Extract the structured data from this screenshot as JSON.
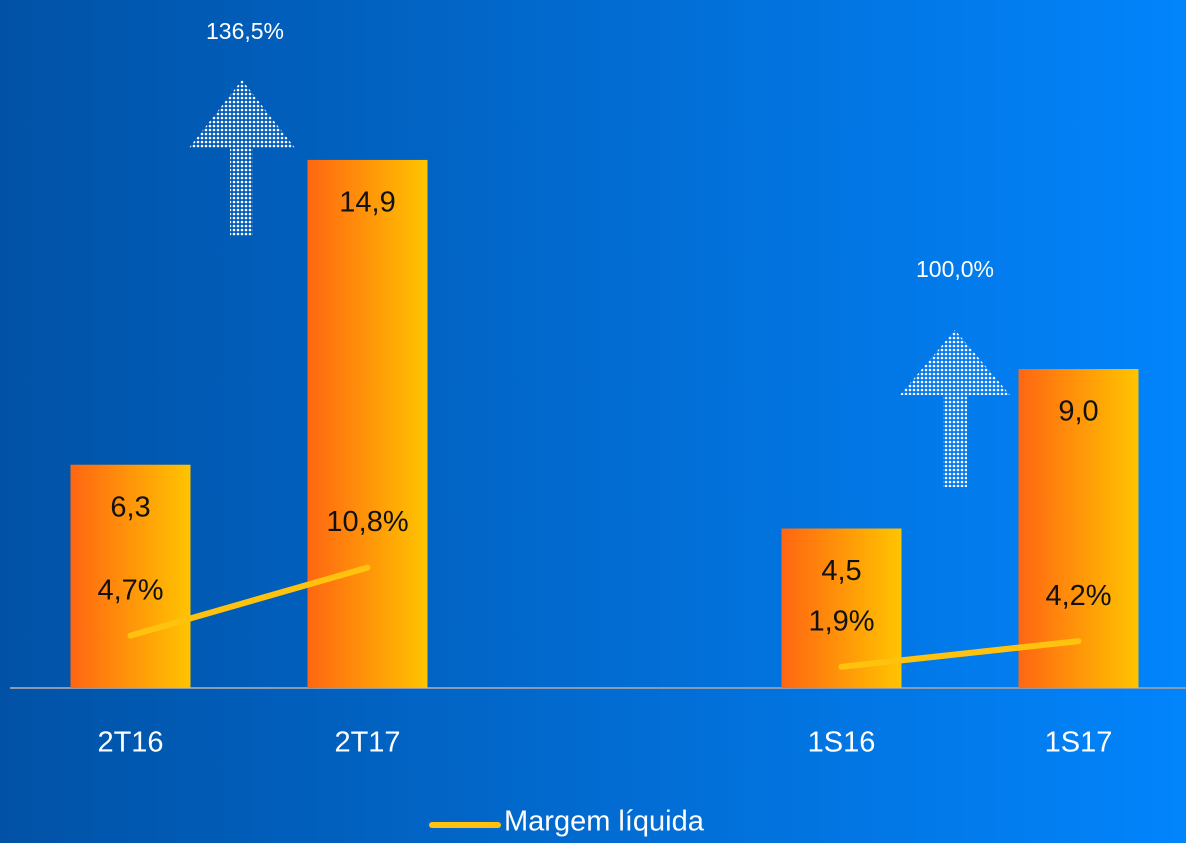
{
  "chart_data": {
    "type": "bar",
    "categories": [
      "2T16",
      "2T17",
      null,
      "1S16",
      "1S17"
    ],
    "ylim": [
      0,
      15
    ],
    "y2lim": [
      0,
      60
    ],
    "series": [
      {
        "type": "bar",
        "colors": [
          "#ff6612",
          "#ffc400"
        ],
        "values": [
          6.3,
          14.9,
          null,
          4.5,
          9.0
        ],
        "value_labels": [
          "6,3",
          "14,9",
          null,
          "4,5",
          "9,0"
        ]
      },
      {
        "type": "line",
        "name": "Margem líquida",
        "color": "#ffc20e",
        "axis": "y2",
        "values": [
          4.7,
          10.8,
          null,
          1.9,
          4.2
        ],
        "value_labels": [
          "4,7%",
          "10,8%",
          null,
          "1,9%",
          "4,2%"
        ]
      }
    ],
    "annotations": [
      "136,5%",
      "100,0%"
    ],
    "legend": "bottom"
  }
}
